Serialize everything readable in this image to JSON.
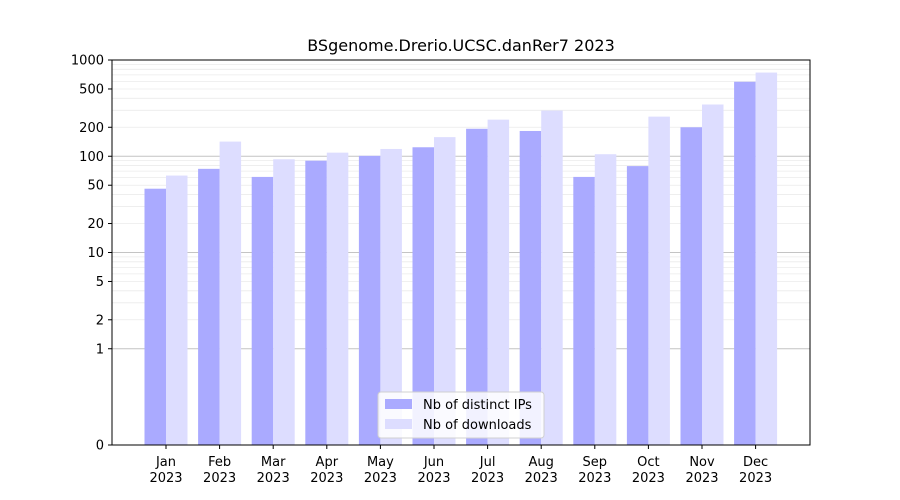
{
  "chart_data": {
    "type": "bar",
    "title": "BSgenome.Drerio.UCSC.danRer7 2023",
    "xlabel": "",
    "ylabel": "",
    "yscale": "symlog",
    "ylim": [
      0,
      1000
    ],
    "yticks": [
      0,
      1,
      2,
      5,
      10,
      20,
      50,
      100,
      200,
      500,
      1000
    ],
    "categories": [
      "Jan\n2023",
      "Feb\n2023",
      "Mar\n2023",
      "Apr\n2023",
      "May\n2023",
      "Jun\n2023",
      "Jul\n2023",
      "Aug\n2023",
      "Sep\n2023",
      "Oct\n2023",
      "Nov\n2023",
      "Dec\n2023"
    ],
    "series": [
      {
        "name": "Nb of distinct IPs",
        "color": "#aaaaff",
        "values": [
          46,
          74,
          61,
          90,
          101,
          124,
          193,
          183,
          61,
          79,
          200,
          594
        ]
      },
      {
        "name": "Nb of downloads",
        "color": "#ddddff",
        "values": [
          63,
          142,
          93,
          109,
          119,
          158,
          240,
          298,
          105,
          258,
          345,
          740
        ]
      }
    ],
    "grid": true,
    "legend": "lower-center"
  }
}
